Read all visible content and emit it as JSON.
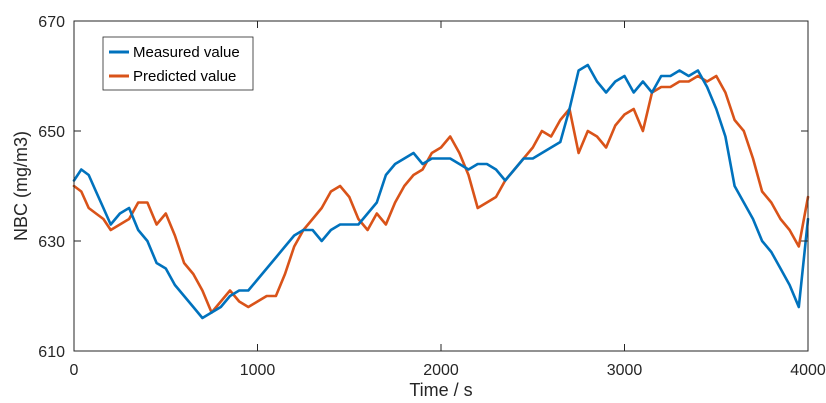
{
  "chart_data": {
    "type": "line",
    "xlabel": "Time / s",
    "ylabel": "NBC (mg/m3)",
    "xlim": [
      0,
      4000
    ],
    "ylim": [
      610,
      670
    ],
    "xticks": [
      0,
      1000,
      2000,
      3000,
      4000
    ],
    "yticks": [
      610,
      630,
      650,
      670
    ],
    "xtick_labels": [
      "0",
      "1000",
      "2000",
      "3000",
      "4000"
    ],
    "ytick_labels": [
      "610",
      "630",
      "650",
      "670"
    ],
    "grid": false,
    "legend_position": "top-left",
    "series": [
      {
        "name": "Measured value",
        "color": "#0072BD",
        "x": [
          0,
          40,
          80,
          120,
          160,
          200,
          250,
          300,
          350,
          400,
          450,
          500,
          550,
          600,
          650,
          700,
          750,
          800,
          850,
          900,
          950,
          1000,
          1050,
          1100,
          1150,
          1200,
          1250,
          1300,
          1350,
          1400,
          1450,
          1500,
          1550,
          1600,
          1650,
          1700,
          1750,
          1800,
          1850,
          1900,
          1950,
          2000,
          2050,
          2100,
          2150,
          2200,
          2250,
          2300,
          2350,
          2400,
          2450,
          2500,
          2550,
          2600,
          2650,
          2700,
          2750,
          2800,
          2850,
          2900,
          2950,
          3000,
          3050,
          3100,
          3150,
          3200,
          3250,
          3300,
          3350,
          3400,
          3450,
          3500,
          3550,
          3600,
          3650,
          3700,
          3750,
          3800,
          3850,
          3900,
          3950,
          4000
        ],
        "values": [
          641,
          643,
          642,
          639,
          636,
          633,
          635,
          636,
          632,
          630,
          626,
          625,
          622,
          620,
          618,
          616,
          617,
          618,
          620,
          621,
          621,
          623,
          625,
          627,
          629,
          631,
          632,
          632,
          630,
          632,
          633,
          633,
          633,
          635,
          637,
          642,
          644,
          645,
          646,
          644,
          645,
          645,
          645,
          644,
          643,
          644,
          644,
          643,
          641,
          643,
          645,
          645,
          646,
          647,
          648,
          654,
          661,
          662,
          659,
          657,
          659,
          660,
          657,
          659,
          657,
          660,
          660,
          661,
          660,
          661,
          658,
          654,
          649,
          640,
          637,
          634,
          630,
          628,
          625,
          622,
          618,
          634
        ]
      },
      {
        "name": "Predicted value",
        "color": "#D95319",
        "x": [
          0,
          40,
          80,
          120,
          160,
          200,
          250,
          300,
          350,
          400,
          450,
          500,
          550,
          600,
          650,
          700,
          750,
          800,
          850,
          900,
          950,
          1000,
          1050,
          1100,
          1150,
          1200,
          1250,
          1300,
          1350,
          1400,
          1450,
          1500,
          1550,
          1600,
          1650,
          1700,
          1750,
          1800,
          1850,
          1900,
          1950,
          2000,
          2050,
          2100,
          2150,
          2200,
          2250,
          2300,
          2350,
          2400,
          2450,
          2500,
          2550,
          2600,
          2650,
          2700,
          2750,
          2800,
          2850,
          2900,
          2950,
          3000,
          3050,
          3100,
          3150,
          3200,
          3250,
          3300,
          3350,
          3400,
          3450,
          3500,
          3550,
          3600,
          3650,
          3700,
          3750,
          3800,
          3850,
          3900,
          3950,
          4000
        ],
        "values": [
          640,
          639,
          636,
          635,
          634,
          632,
          633,
          634,
          637,
          637,
          633,
          635,
          631,
          626,
          624,
          621,
          617,
          619,
          621,
          619,
          618,
          619,
          620,
          620,
          624,
          629,
          632,
          634,
          636,
          639,
          640,
          638,
          634,
          632,
          635,
          633,
          637,
          640,
          642,
          643,
          646,
          647,
          649,
          646,
          642,
          636,
          637,
          638,
          641,
          643,
          645,
          647,
          650,
          649,
          652,
          654,
          646,
          650,
          649,
          647,
          651,
          653,
          654,
          650,
          657,
          658,
          658,
          659,
          659,
          660,
          659,
          660,
          657,
          652,
          650,
          645,
          639,
          637,
          634,
          632,
          629,
          638
        ]
      }
    ]
  }
}
